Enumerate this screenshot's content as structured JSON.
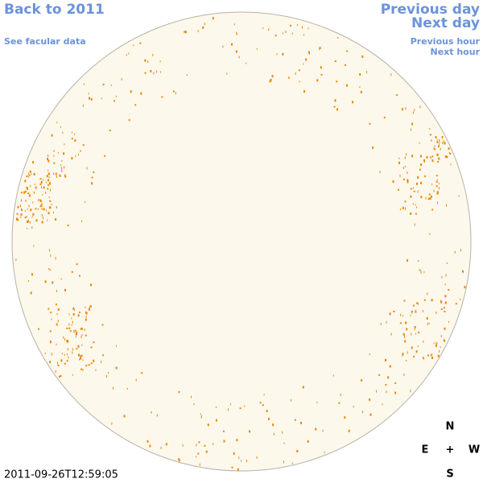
{
  "navigation": {
    "back": "Back to 2011",
    "facular": "See facular data",
    "previous_day": "Previous day",
    "next_day": "Next day",
    "previous_hour": "Previous hour",
    "next_hour": "Next hour"
  },
  "compass": {
    "north": "N",
    "east": "E",
    "center": "+",
    "west": "W",
    "south": "S"
  },
  "timestamp": "2011-09-26T12:59:05"
}
